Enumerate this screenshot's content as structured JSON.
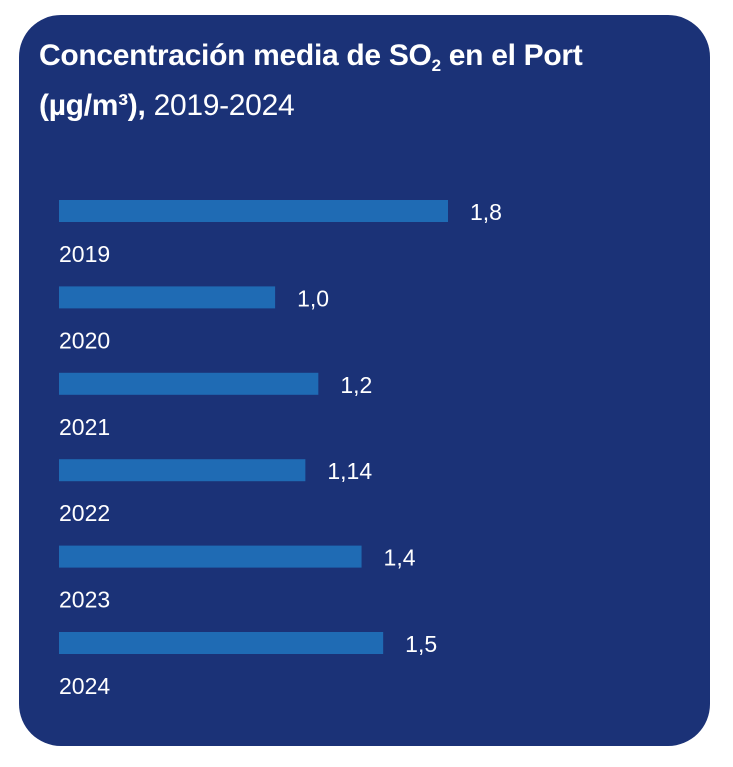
{
  "chart_data": {
    "type": "bar",
    "orientation": "horizontal",
    "title_bold_1": "Concentración media de SO",
    "title_subscript": "2",
    "title_bold_2": " en el Port (µg/m³),",
    "title_regular": " 2019-2024",
    "categories": [
      "2019",
      "2020",
      "2021",
      "2022",
      "2023",
      "2024"
    ],
    "values": [
      1.8,
      1.0,
      1.2,
      1.14,
      1.4,
      1.5
    ],
    "value_labels": [
      "1,8",
      "1,0",
      "1,2",
      "1,14",
      "1,4",
      "1,5"
    ],
    "xlabel": "",
    "ylabel": "",
    "xlim": [
      0,
      1.8
    ],
    "grid": false,
    "legend": "none"
  },
  "colors": {
    "background": "#1b3277",
    "bar": "#1f6bb4",
    "text": "#ffffff"
  }
}
